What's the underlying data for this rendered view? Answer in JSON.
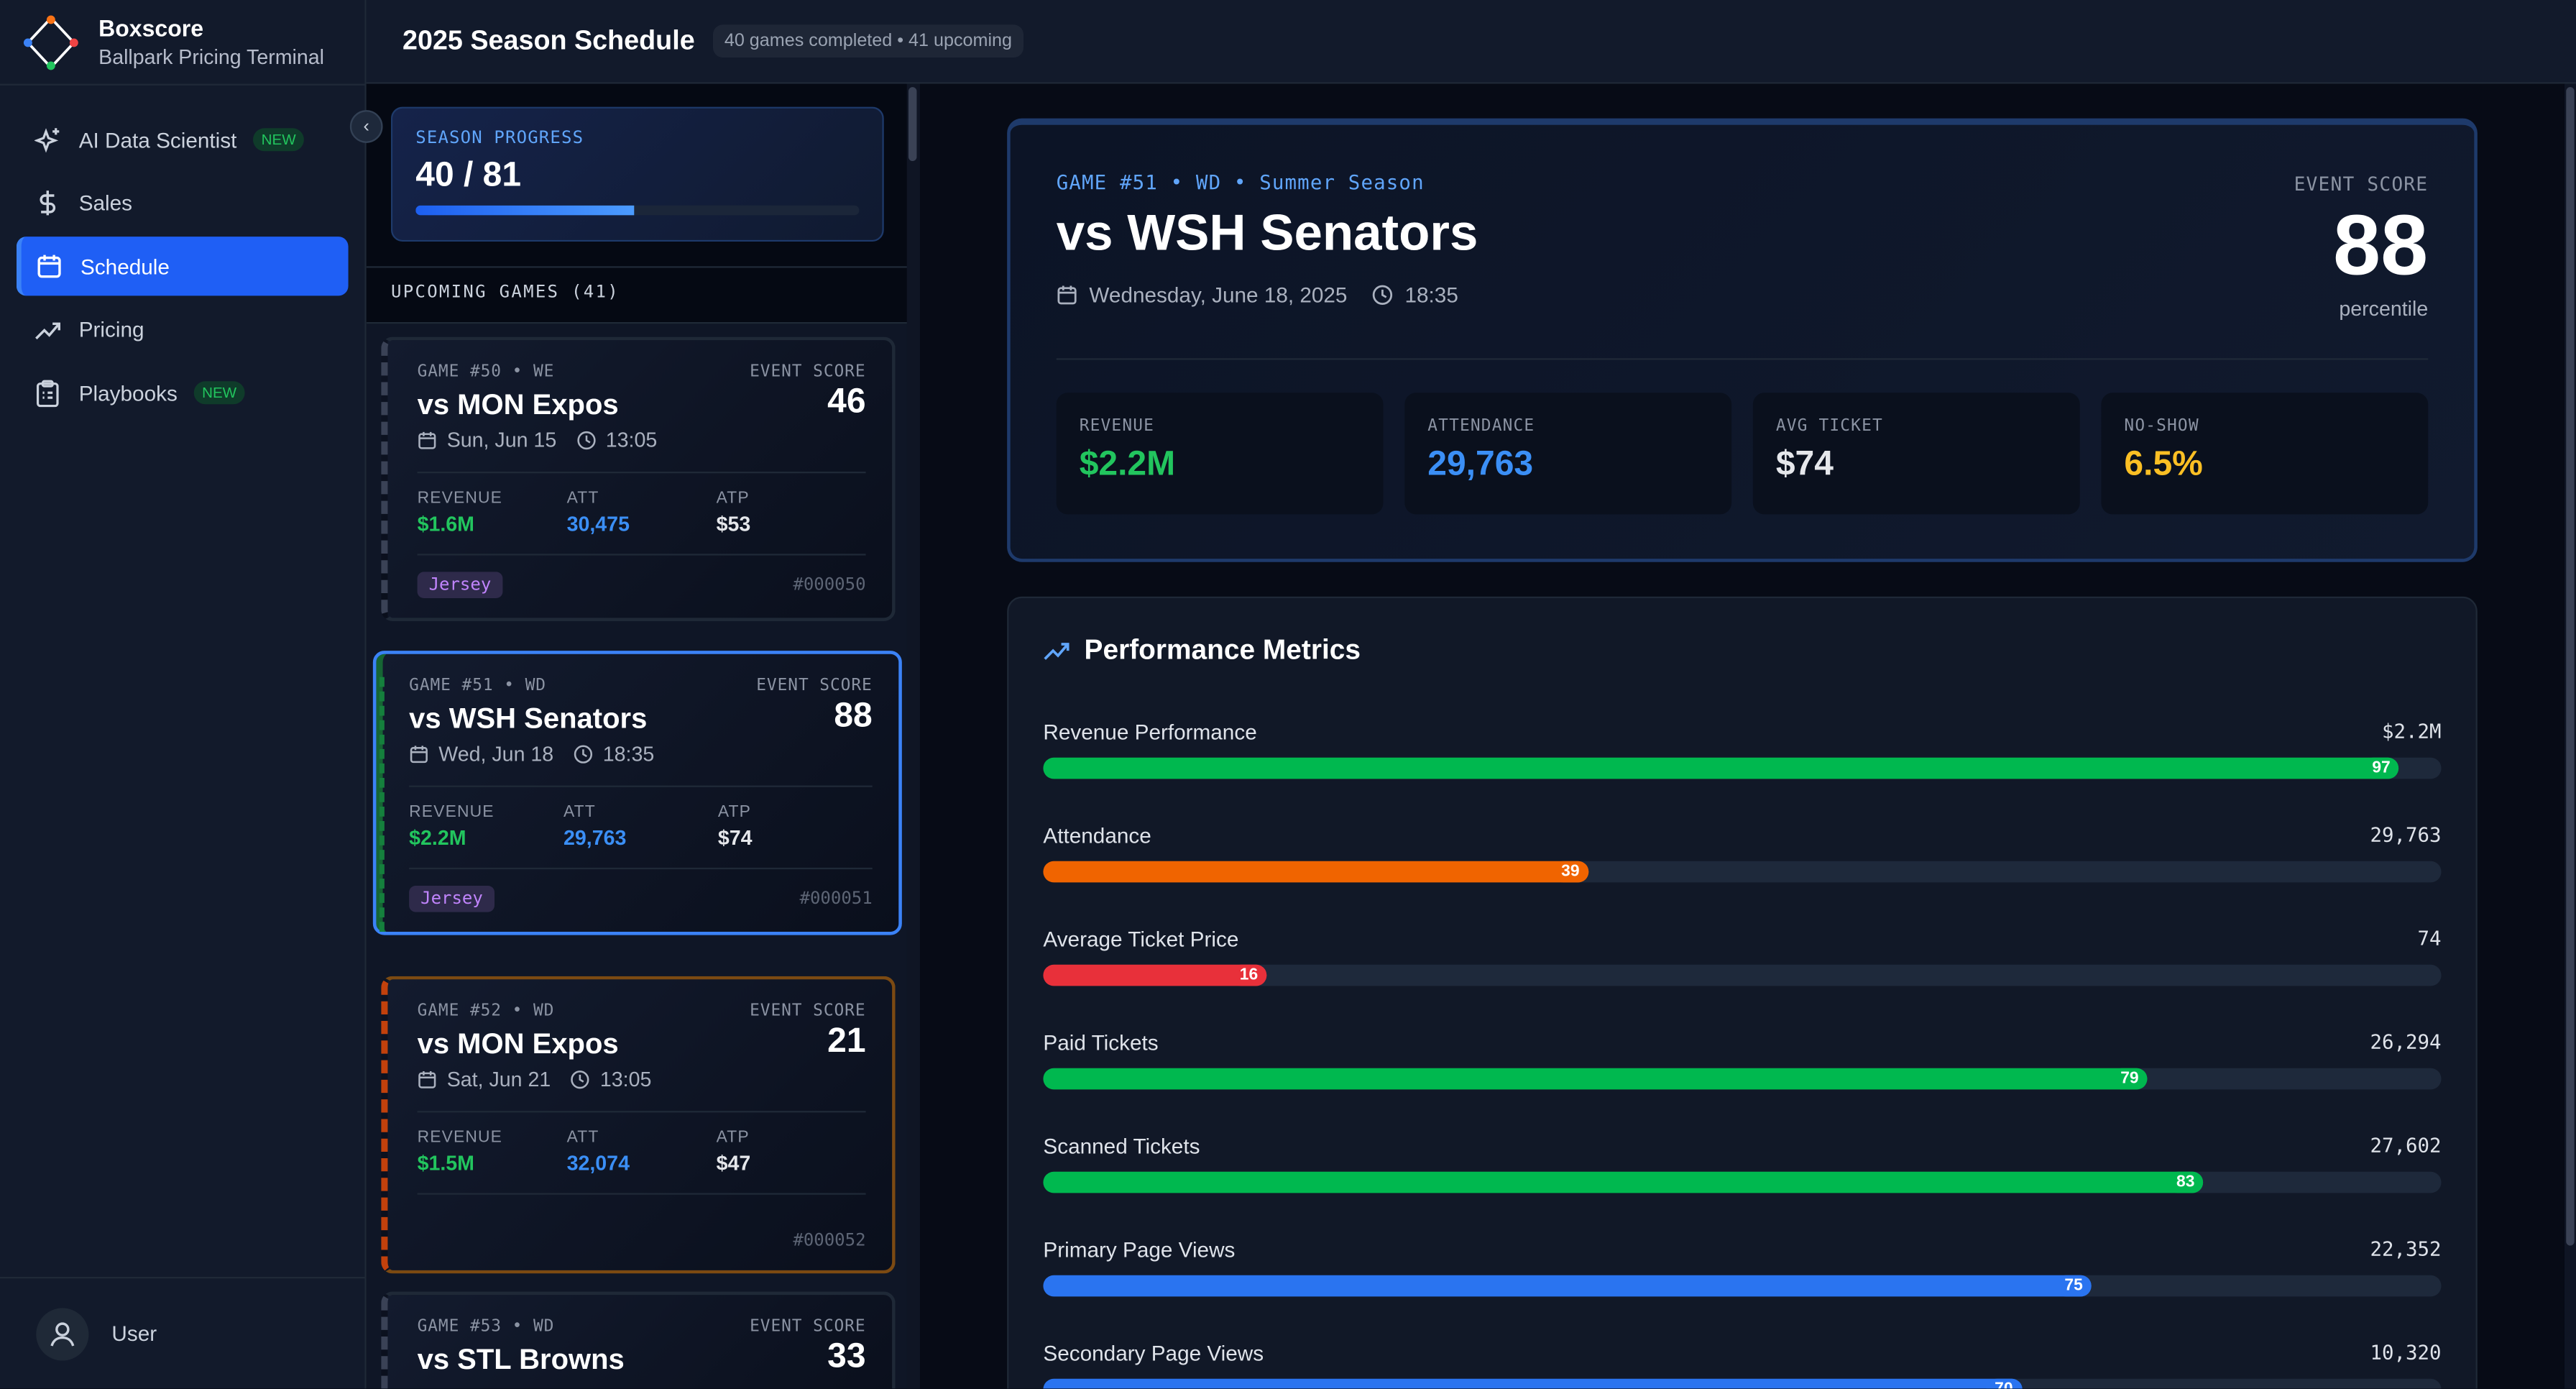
{
  "brand": {
    "name": "Boxscore",
    "subtitle": "Ballpark Pricing Terminal"
  },
  "sidebar": {
    "items": [
      {
        "label": "AI Data Scientist",
        "icon": "sparkles-icon",
        "badge": "NEW",
        "active": false
      },
      {
        "label": "Sales",
        "icon": "dollar-icon",
        "badge": null,
        "active": false
      },
      {
        "label": "Schedule",
        "icon": "calendar-icon",
        "badge": null,
        "active": true
      },
      {
        "label": "Pricing",
        "icon": "trending-up-icon",
        "badge": null,
        "active": false
      },
      {
        "label": "Playbooks",
        "icon": "clipboard-icon",
        "badge": "NEW",
        "active": false
      }
    ],
    "user": "User"
  },
  "header": {
    "title": "2025 Season Schedule",
    "summary": "40 games completed • 41 upcoming"
  },
  "season_progress": {
    "label": "SEASON PROGRESS",
    "value": "40 / 81",
    "completed": 40,
    "total": 81
  },
  "upcoming": {
    "heading": "UPCOMING GAMES (41)",
    "games": [
      {
        "meta": "GAME #50 • WE",
        "score_label": "EVENT SCORE",
        "title": "vs MON Expos",
        "score": "46",
        "date": "Sun, Jun 15",
        "time": "13:05",
        "revenue": "$1.6M",
        "att": "30,475",
        "atp": "$53",
        "tag": "Jersey",
        "id": "#000050",
        "state": "normal"
      },
      {
        "meta": "GAME #51 • WD",
        "score_label": "EVENT SCORE",
        "title": "vs WSH Senators",
        "score": "88",
        "date": "Wed, Jun 18",
        "time": "18:35",
        "revenue": "$2.2M",
        "att": "29,763",
        "atp": "$74",
        "tag": "Jersey",
        "id": "#000051",
        "state": "selected"
      },
      {
        "meta": "GAME #52 • WD",
        "score_label": "EVENT SCORE",
        "title": "vs MON Expos",
        "score": "21",
        "date": "Sat, Jun 21",
        "time": "13:05",
        "revenue": "$1.5M",
        "att": "32,074",
        "atp": "$47",
        "tag": null,
        "id": "#000052",
        "state": "warning"
      },
      {
        "meta": "GAME #53 • WD",
        "score_label": "EVENT SCORE",
        "title": "vs STL Browns",
        "score": "33",
        "date": "",
        "time": "",
        "revenue": "",
        "att": "",
        "atp": "",
        "tag": null,
        "id": "",
        "state": "normal"
      }
    ],
    "stat_labels": {
      "revenue": "REVENUE",
      "att": "ATT",
      "atp": "ATP"
    }
  },
  "detail": {
    "meta": "GAME #51 • WD • Summer Season",
    "title": "vs WSH Senators",
    "date": "Wednesday, June 18, 2025",
    "time": "18:35",
    "score_label": "EVENT SCORE",
    "score": "88",
    "score_unit": "percentile",
    "kpis": [
      {
        "label": "REVENUE",
        "value": "$2.2M",
        "color": "#22c55e"
      },
      {
        "label": "ATTENDANCE",
        "value": "29,763",
        "color": "#3b8ff6"
      },
      {
        "label": "AVG TICKET",
        "value": "$74",
        "color": "#e5e7eb"
      },
      {
        "label": "NO-SHOW",
        "value": "6.5%",
        "color": "#fbbf24"
      }
    ]
  },
  "performance": {
    "title": "Performance Metrics",
    "metrics": [
      {
        "label": "Revenue Performance",
        "value": "$2.2M",
        "percentile": 97,
        "color": "#00b84f"
      },
      {
        "label": "Attendance",
        "value": "29,763",
        "percentile": 39,
        "color": "#f06400"
      },
      {
        "label": "Average Ticket Price",
        "value": "74",
        "percentile": 16,
        "color": "#e8303a"
      },
      {
        "label": "Paid Tickets",
        "value": "26,294",
        "percentile": 79,
        "color": "#00b84f"
      },
      {
        "label": "Scanned Tickets",
        "value": "27,602",
        "percentile": 83,
        "color": "#00b84f"
      },
      {
        "label": "Primary Page Views",
        "value": "22,352",
        "percentile": 75,
        "color": "#2a74f0"
      },
      {
        "label": "Secondary Page Views",
        "value": "10,320",
        "percentile": 70,
        "color": "#2a74f0"
      }
    ]
  }
}
